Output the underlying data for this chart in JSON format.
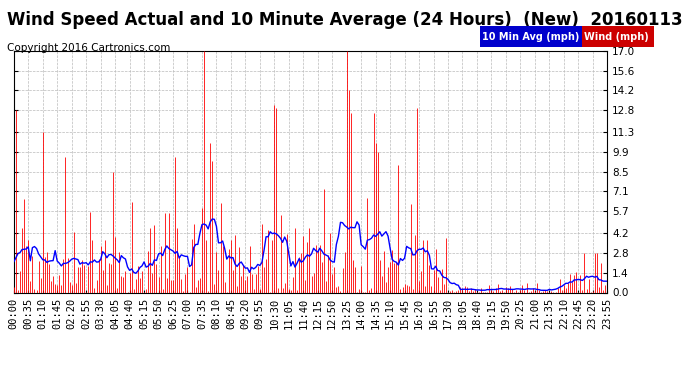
{
  "title": "Wind Speed Actual and 10 Minute Average (24 Hours)  (New)  20160113",
  "copyright": "Copyright 2016 Cartronics.com",
  "legend_labels": [
    "10 Min Avg (mph)",
    "Wind (mph)"
  ],
  "legend_bg_colors": [
    "#0000cc",
    "#cc0000"
  ],
  "yticks": [
    0.0,
    1.4,
    2.8,
    4.2,
    5.7,
    7.1,
    8.5,
    9.9,
    11.3,
    12.8,
    14.2,
    15.6,
    17.0
  ],
  "ylim": [
    0.0,
    17.0
  ],
  "background_color": "#ffffff",
  "plot_background": "#ffffff",
  "grid_color": "#bbbbbb",
  "wind_color": "#ff0000",
  "avg_color": "#0000ff",
  "title_fontsize": 12,
  "copyright_fontsize": 7.5,
  "tick_fontsize": 7.5
}
